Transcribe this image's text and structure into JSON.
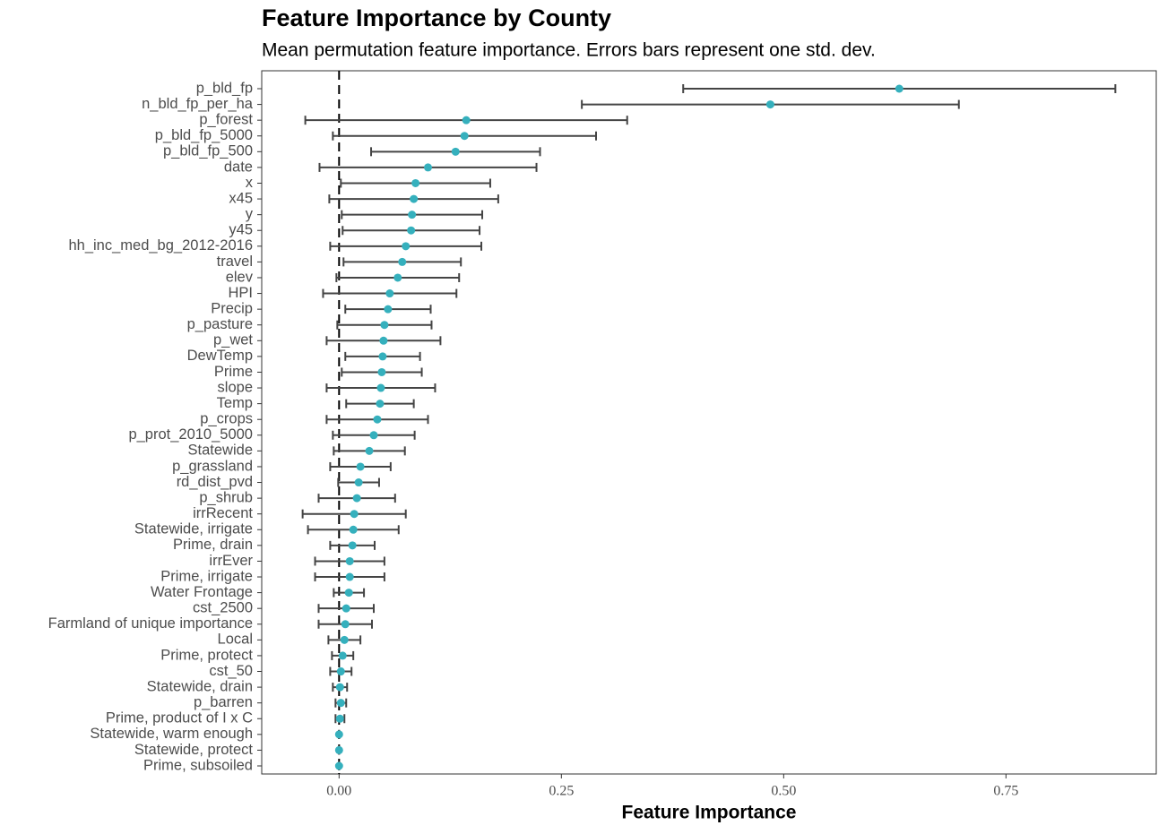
{
  "chart_data": {
    "type": "dot_errorbar",
    "title": "Feature Importance by County",
    "subtitle": "Mean permutation feature importance. Errors bars represent one std. dev.",
    "x_label": "Feature Importance",
    "categories": [
      "p_bld_fp",
      "n_bld_fp_per_ha",
      "p_forest",
      "p_bld_fp_5000",
      "p_bld_fp_500",
      "date",
      "x",
      "x45",
      "y",
      "y45",
      "hh_inc_med_bg_2012-2016",
      "travel",
      "elev",
      "HPI",
      "Precip",
      "p_pasture",
      "p_wet",
      "DewTemp",
      "Prime",
      "slope",
      "Temp",
      "p_crops",
      "p_prot_2010_5000",
      "Statewide",
      "p_grassland",
      "rd_dist_pvd",
      "p_shrub",
      "irrRecent",
      "Statewide, irrigate",
      "Prime, drain",
      "irrEver",
      "Prime, irrigate",
      "Water Frontage",
      "cst_2500",
      "Farmland of unique importance",
      "Local",
      "Prime, protect",
      "cst_50",
      "Statewide, drain",
      "p_barren",
      "Prime, product of I x C",
      "Statewide, warm enough",
      "Statewide, protect",
      "Prime, subsoiled"
    ],
    "values": [
      0.63,
      0.485,
      0.143,
      0.141,
      0.131,
      0.1,
      0.086,
      0.084,
      0.082,
      0.081,
      0.075,
      0.071,
      0.066,
      0.057,
      0.055,
      0.051,
      0.05,
      0.049,
      0.048,
      0.047,
      0.046,
      0.043,
      0.039,
      0.034,
      0.024,
      0.022,
      0.02,
      0.017,
      0.016,
      0.015,
      0.012,
      0.012,
      0.011,
      0.008,
      0.007,
      0.006,
      0.004,
      0.002,
      0.001,
      0.002,
      0.001,
      0,
      0,
      0
    ],
    "errors": [
      0.243,
      0.212,
      0.181,
      0.148,
      0.095,
      0.122,
      0.084,
      0.095,
      0.079,
      0.077,
      0.085,
      0.066,
      0.069,
      0.075,
      0.048,
      0.053,
      0.064,
      0.042,
      0.045,
      0.061,
      0.038,
      0.057,
      0.046,
      0.04,
      0.034,
      0.023,
      0.043,
      0.058,
      0.051,
      0.025,
      0.039,
      0.039,
      0.017,
      0.031,
      0.03,
      0.018,
      0.012,
      0.012,
      0.008,
      0.006,
      0.005,
      0,
      0,
      0
    ],
    "color": "#35b0bd",
    "error_color": "#444444",
    "vline": 0,
    "xlim": [
      -0.087,
      0.919
    ],
    "xticks": [
      {
        "value": 0,
        "label": "0.00"
      },
      {
        "value": 0.25,
        "label": "0.25"
      },
      {
        "value": 0.5,
        "label": "0.50"
      },
      {
        "value": 0.75,
        "label": "0.75"
      }
    ],
    "grid": false
  }
}
